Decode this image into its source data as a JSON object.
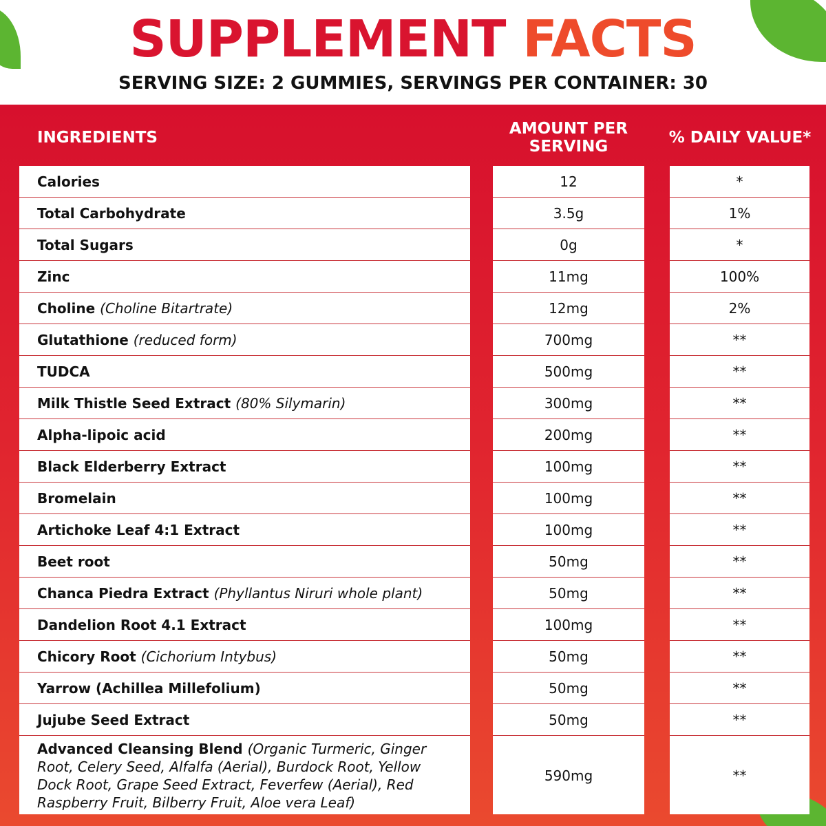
{
  "header": {
    "title": [
      "SUPPLEMENT",
      "FACTS"
    ],
    "subtitle": "SERVING SIZE: 2 GUMMIES, SERVINGS PER CONTAINER: 30"
  },
  "table": {
    "columns": [
      "INGREDIENTS",
      "AMOUNT PER SERVING",
      "% DAILY VALUE*"
    ],
    "rows": [
      {
        "name": "Calories",
        "amount": "12",
        "dv": "*"
      },
      {
        "name": "Total Carbohydrate",
        "amount": "3.5g",
        "dv": "1%"
      },
      {
        "name": "Total Sugars",
        "amount": "0g",
        "dv": "*"
      },
      {
        "name": "Zinc",
        "amount": "11mg",
        "dv": "100%"
      },
      {
        "name": "Choline",
        "note": "(Choline Bitartrate)",
        "amount": "12mg",
        "dv": "2%"
      },
      {
        "name": "Glutathione",
        "note": "(reduced form)",
        "amount": "700mg",
        "dv": "**"
      },
      {
        "name": "TUDCA",
        "amount": "500mg",
        "dv": "**"
      },
      {
        "name": "Milk Thistle Seed Extract",
        "note": "(80% Silymarin)",
        "amount": "300mg",
        "dv": "**"
      },
      {
        "name": "Alpha-lipoic acid",
        "amount": "200mg",
        "dv": "**"
      },
      {
        "name": "Black Elderberry Extract",
        "amount": "100mg",
        "dv": "**"
      },
      {
        "name": "Bromelain",
        "amount": "100mg",
        "dv": "**"
      },
      {
        "name": "Artichoke Leaf 4:1 Extract",
        "amount": "100mg",
        "dv": "**"
      },
      {
        "name": "Beet root",
        "amount": "50mg",
        "dv": "**"
      },
      {
        "name": "Chanca Piedra Extract",
        "note": "(Phyllantus Niruri whole plant)",
        "amount": "50mg",
        "dv": "**"
      },
      {
        "name": "Dandelion Root 4.1 Extract",
        "amount": "100mg",
        "dv": "**"
      },
      {
        "name": "Chicory Root",
        "note": "(Cichorium Intybus)",
        "amount": "50mg",
        "dv": "**"
      },
      {
        "name": "Yarrow (Achillea Millefolium)",
        "amount": "50mg",
        "dv": "**"
      },
      {
        "name": "Jujube Seed Extract",
        "amount": "50mg",
        "dv": "**"
      },
      {
        "name": "Advanced Cleansing Blend",
        "note": "(Organic Turmeric, Ginger Root, Celery Seed, Alfalfa (Aerial), Burdock Root, Yellow Dock Root, Grape Seed Extract, Feverfew (Aerial), Red Raspberry Fruit, Bilberry Fruit, Aloe vera Leaf)",
        "amount": "590mg",
        "dv": "**"
      }
    ]
  }
}
